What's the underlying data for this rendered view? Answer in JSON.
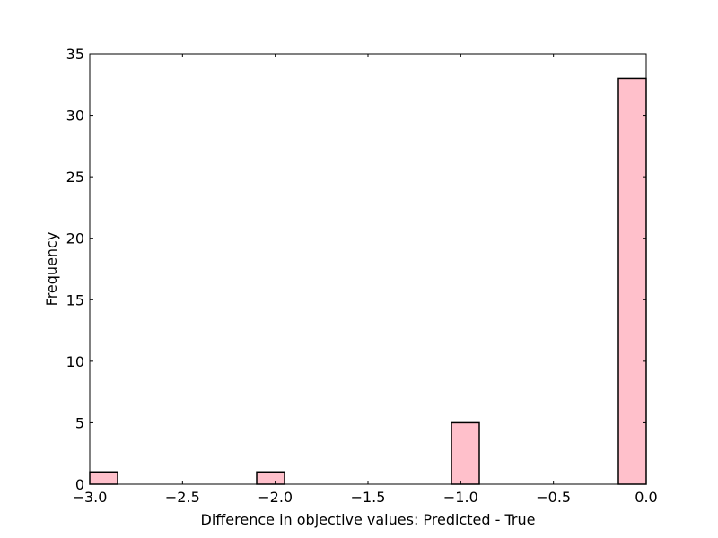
{
  "chart_data": {
    "type": "bar",
    "title": "",
    "xlabel": "Difference in objective values: Predicted - True",
    "ylabel": "Frequency",
    "xlim": [
      -3.0,
      0.0
    ],
    "ylim": [
      0,
      35
    ],
    "grid": false,
    "bar_color": "#ffc0cb",
    "edge_color": "#000000",
    "bins": [
      {
        "x0": -3.0,
        "x1": -2.85,
        "value": 1
      },
      {
        "x0": -2.1,
        "x1": -1.95,
        "value": 1
      },
      {
        "x0": -1.05,
        "x1": -0.9,
        "value": 5
      },
      {
        "x0": -0.15,
        "x1": 0.0,
        "value": 33
      }
    ],
    "xticks": [
      {
        "value": -3.0,
        "label": "−3.0"
      },
      {
        "value": -2.5,
        "label": "−2.5"
      },
      {
        "value": -2.0,
        "label": "−2.0"
      },
      {
        "value": -1.5,
        "label": "−1.5"
      },
      {
        "value": -1.0,
        "label": "−1.0"
      },
      {
        "value": -0.5,
        "label": "−0.5"
      },
      {
        "value": 0.0,
        "label": "0.0"
      }
    ],
    "yticks": [
      {
        "value": 0,
        "label": "0"
      },
      {
        "value": 5,
        "label": "5"
      },
      {
        "value": 10,
        "label": "10"
      },
      {
        "value": 15,
        "label": "15"
      },
      {
        "value": 20,
        "label": "20"
      },
      {
        "value": 25,
        "label": "25"
      },
      {
        "value": 30,
        "label": "30"
      },
      {
        "value": 35,
        "label": "35"
      }
    ]
  }
}
